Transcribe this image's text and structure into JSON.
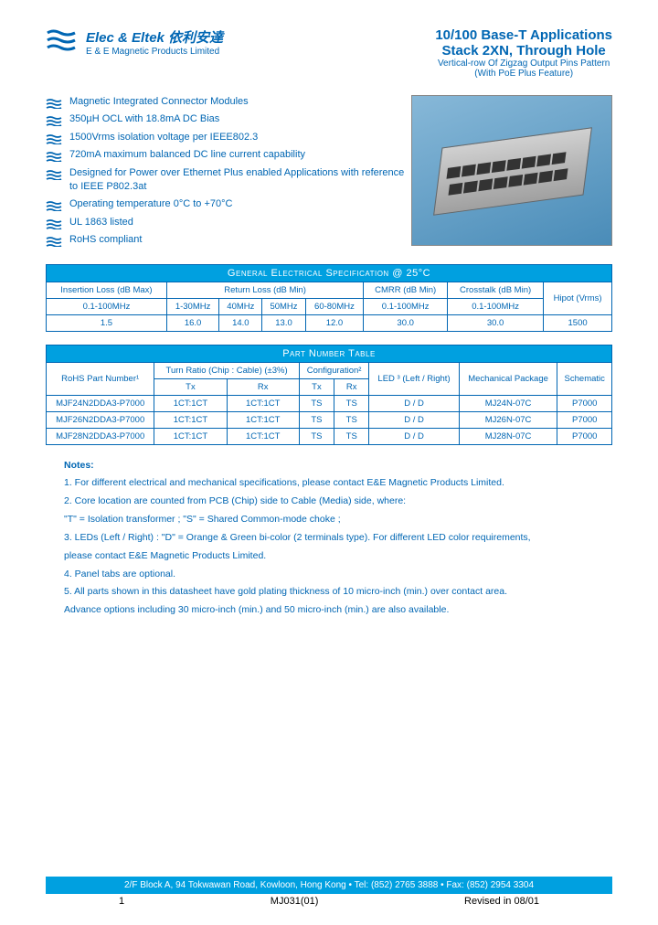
{
  "company": {
    "name": "Elec & Eltek 依利安達",
    "sub": "E & E Magnetic Products Limited"
  },
  "title": {
    "l1": "10/100 Base-T Applications",
    "l2": "Stack 2XN, Through Hole",
    "l3": "Vertical-row Of Zigzag Output Pins Pattern",
    "l4": "(With PoE Plus Feature)"
  },
  "features": [
    "Magnetic Integrated Connector Modules",
    "350µH OCL with 18.8mA DC Bias",
    "1500Vrms isolation voltage per IEEE802.3",
    "720mA maximum balanced DC line current capability",
    "Designed for Power over Ethernet Plus enabled Applications with reference to IEEE P802.3at",
    "Operating temperature 0°C to +70°C",
    "UL 1863 listed",
    "RoHS compliant"
  ],
  "spec": {
    "title": "General Electrical Specification @ 25°C",
    "h1": [
      "Insertion Loss (dB Max)",
      "Return Loss (dB Min)",
      "CMRR (dB Min)",
      "Crosstalk (dB Min)",
      "Hipot (Vrms)"
    ],
    "h2": [
      "0.1-100MHz",
      "1-30MHz",
      "40MHz",
      "50MHz",
      "60-80MHz",
      "0.1-100MHz",
      "0.1-100MHz",
      ""
    ],
    "row": [
      "1.5",
      "16.0",
      "14.0",
      "13.0",
      "12.0",
      "30.0",
      "30.0",
      "1500"
    ]
  },
  "parts": {
    "title": "Part Number Table",
    "h1": [
      "RoHS Part Number¹",
      "Turn Ratio (Chip : Cable) (±3%)",
      "Configuration²",
      "LED ³ (Left / Right)",
      "Mechanical Package",
      "Schematic"
    ],
    "h2": [
      "Tx",
      "Rx",
      "Tx",
      "Rx"
    ],
    "rows": [
      [
        "MJF24N2DDA3-P7000",
        "1CT:1CT",
        "1CT:1CT",
        "TS",
        "TS",
        "D / D",
        "MJ24N-07C",
        "P7000"
      ],
      [
        "MJF26N2DDA3-P7000",
        "1CT:1CT",
        "1CT:1CT",
        "TS",
        "TS",
        "D / D",
        "MJ26N-07C",
        "P7000"
      ],
      [
        "MJF28N2DDA3-P7000",
        "1CT:1CT",
        "1CT:1CT",
        "TS",
        "TS",
        "D / D",
        "MJ28N-07C",
        "P7000"
      ]
    ]
  },
  "notes": {
    "title": "Notes:",
    "items": [
      "1. For different electrical and mechanical specifications, please contact E&E Magnetic Products Limited.",
      "2. Core location are counted from PCB (Chip) side to Cable (Media) side, where:",
      "    \"T\" = Isolation transformer ;   \"S\" = Shared Common-mode choke ;",
      "3. LEDs (Left / Right) : \"D\" = Orange & Green bi-color (2 terminals type). For different LED color requirements,",
      "    please contact E&E Magnetic Products Limited.",
      "4. Panel tabs are optional.",
      "5. All parts shown in this datasheet have gold plating thickness of 10 micro-inch (min.) over contact area.",
      "    Advance options including 30 micro-inch (min.) and 50 micro-inch (min.) are also available."
    ]
  },
  "footer": {
    "bar": "2/F Block A, 94 Tokwawan Road, Kowloon, Hong Kong  •  Tel: (852) 2765 3888  •  Fax: (852) 2954 3304",
    "page": "1",
    "doc": "MJ031(01)",
    "rev": "Revised in 08/01"
  },
  "colors": {
    "brand": "#0066b3",
    "accent": "#00a0e0"
  }
}
